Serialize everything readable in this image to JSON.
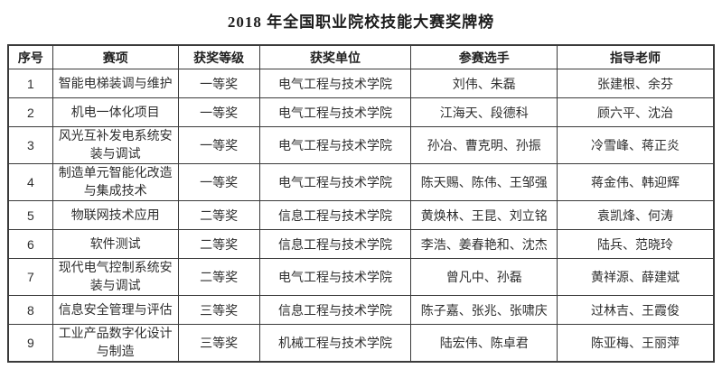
{
  "title": "2018 年全国职业院校技能大赛奖牌榜",
  "table": {
    "headers": {
      "no": "序号",
      "event": "赛项",
      "award": "获奖等级",
      "unit": "获奖单位",
      "contestants": "参赛选手",
      "teachers": "指导老师"
    },
    "rows": [
      {
        "no": "1",
        "event": "智能电梯装调与维护",
        "award": "一等奖",
        "unit": "电气工程与技术学院",
        "contestants": "刘伟、朱磊",
        "teachers": "张建根、余芬"
      },
      {
        "no": "2",
        "event": "机电一体化项目",
        "award": "一等奖",
        "unit": "电气工程与技术学院",
        "contestants": "江海天、段德科",
        "teachers": "顾六平、沈治"
      },
      {
        "no": "3",
        "event": "风光互补发电系统安\n装与调试",
        "award": "一等奖",
        "unit": "电气工程与技术学院",
        "contestants": "孙冶、曹克明、孙振",
        "teachers": "冷雪峰、蒋正炎"
      },
      {
        "no": "4",
        "event": "制造单元智能化改造\n与集成技术",
        "award": "一等奖",
        "unit": "电气工程与技术学院",
        "contestants": "陈天赐、陈伟、王邹强",
        "teachers": "蒋金伟、韩迎辉"
      },
      {
        "no": "5",
        "event": "物联网技术应用",
        "award": "二等奖",
        "unit": "信息工程与技术学院",
        "contestants": "黄焕林、王昆、刘立铭",
        "teachers": "袁凯烽、何涛"
      },
      {
        "no": "6",
        "event": "软件测试",
        "award": "二等奖",
        "unit": "信息工程与技术学院",
        "contestants": "李浩、姜春艳和、沈杰",
        "teachers": "陆兵、范晓玲"
      },
      {
        "no": "7",
        "event": "现代电气控制系统安\n装与调试",
        "award": "二等奖",
        "unit": "电气工程与技术学院",
        "contestants": "曾凡中、孙磊",
        "teachers": "黄祥源、薛建斌"
      },
      {
        "no": "8",
        "event": "信息安全管理与评估",
        "award": "三等奖",
        "unit": "信息工程与技术学院",
        "contestants": "陈子嘉、张兆、张啸庆",
        "teachers": "过林吉、王霞俊"
      },
      {
        "no": "9",
        "event": "工业产品数字化设计\n与制造",
        "award": "三等奖",
        "unit": "机械工程与技术学院",
        "contestants": "陆宏伟、陈卓君",
        "teachers": "陈亚梅、王丽萍"
      }
    ],
    "border_color": "#3a3a3a"
  }
}
